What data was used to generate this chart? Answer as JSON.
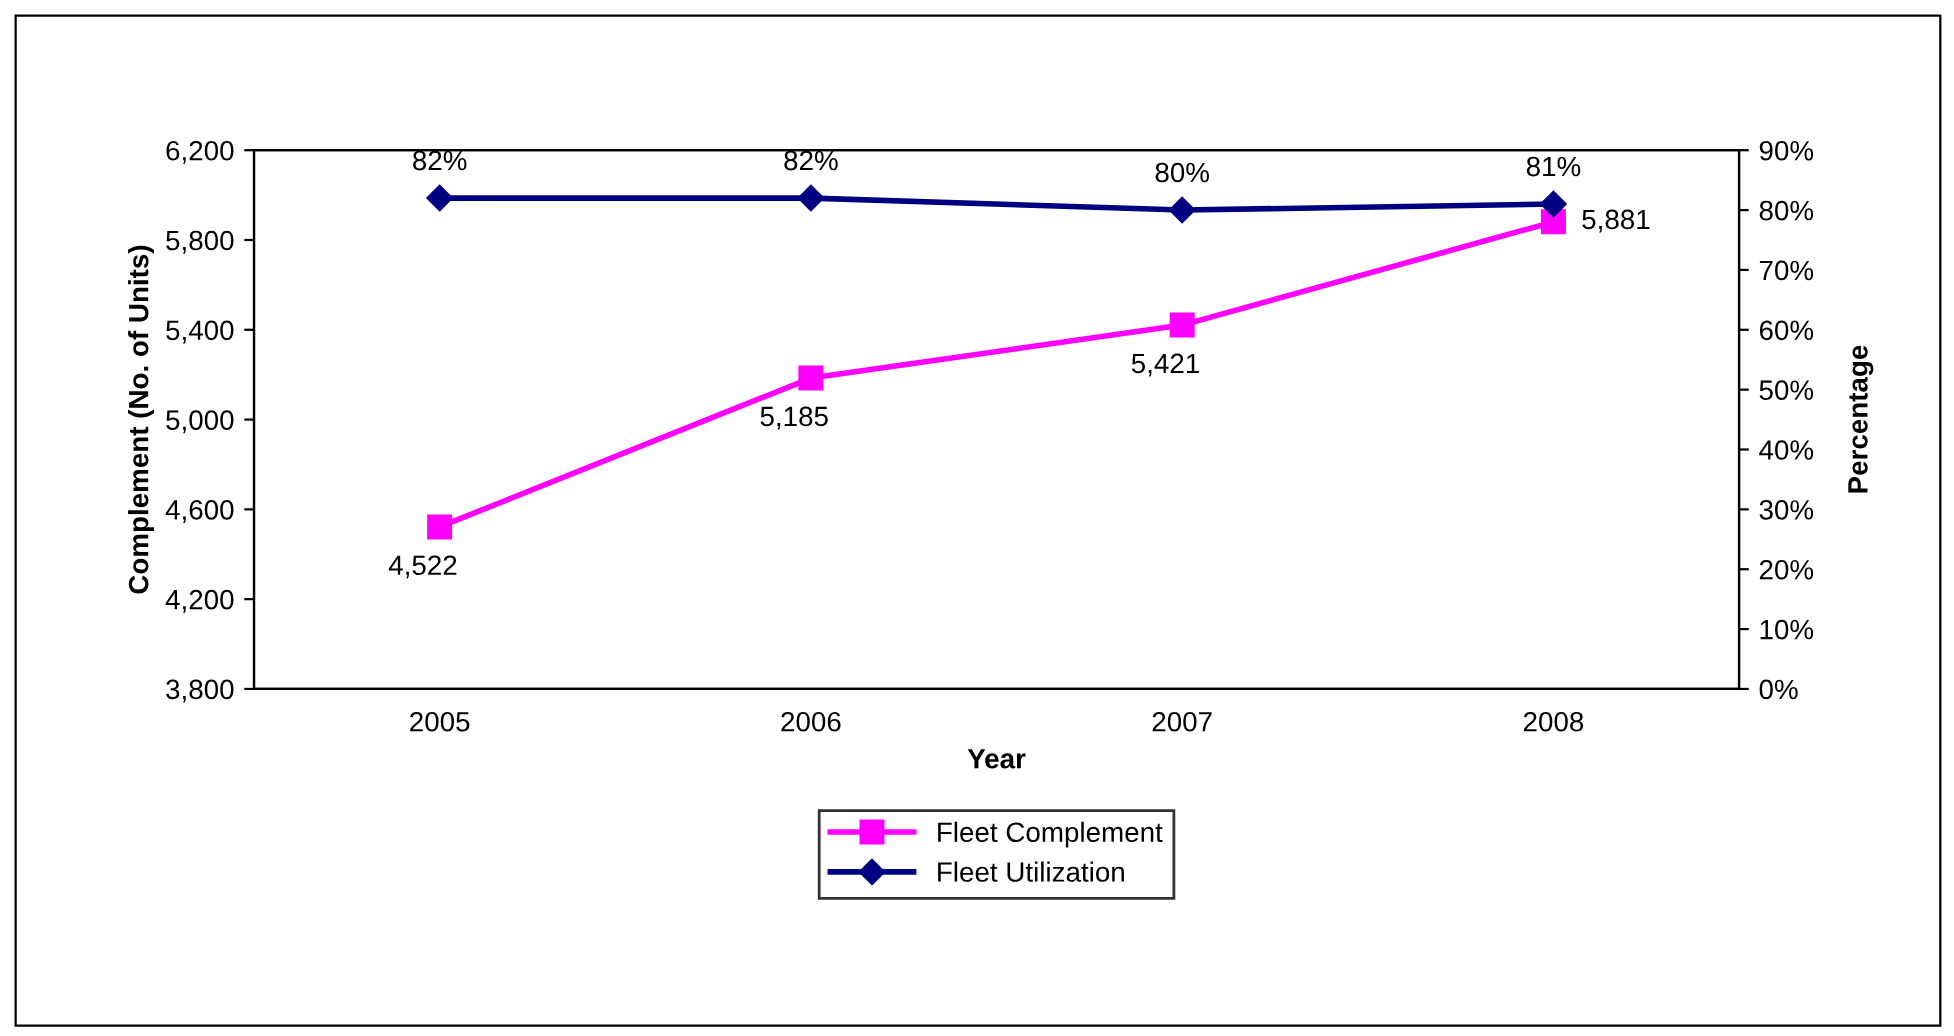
{
  "chart_data": {
    "type": "line",
    "categories": [
      "2005",
      "2006",
      "2007",
      "2008"
    ],
    "xlabel": "Year",
    "ylabel": "Complement (No. of Units)",
    "y2label": "Percentage",
    "ylim": [
      3800,
      6200
    ],
    "yticks": [
      {
        "value": 3800,
        "label": "3,800"
      },
      {
        "value": 4200,
        "label": "4,200"
      },
      {
        "value": 4600,
        "label": "4,600"
      },
      {
        "value": 5000,
        "label": "5,000"
      },
      {
        "value": 5400,
        "label": "5,400"
      },
      {
        "value": 5800,
        "label": "5,800"
      },
      {
        "value": 6200,
        "label": "6,200"
      }
    ],
    "y2lim": [
      0,
      90
    ],
    "y2ticks": [
      {
        "value": 0,
        "label": "0%"
      },
      {
        "value": 10,
        "label": "10%"
      },
      {
        "value": 20,
        "label": "20%"
      },
      {
        "value": 30,
        "label": "30%"
      },
      {
        "value": 40,
        "label": "40%"
      },
      {
        "value": 50,
        "label": "50%"
      },
      {
        "value": 60,
        "label": "60%"
      },
      {
        "value": 70,
        "label": "70%"
      },
      {
        "value": 80,
        "label": "80%"
      },
      {
        "value": 90,
        "label": "90%"
      }
    ],
    "grid": false,
    "legend": "bottom",
    "line_style": "solid",
    "series": [
      {
        "name": "Fleet Complement",
        "color": "#ff00ff",
        "marker": "square",
        "values": [
          4522,
          5185,
          5421,
          5881
        ],
        "value_labels": [
          "4,522",
          "5,185",
          "5,421",
          "5,881"
        ]
      },
      {
        "name": "Fleet Utilization",
        "color": "#000080",
        "marker": "diamond",
        "axis": "y2",
        "values": [
          82,
          82,
          80,
          81
        ],
        "value_labels": [
          "82%",
          "82%",
          "80%",
          "81%"
        ]
      }
    ]
  }
}
